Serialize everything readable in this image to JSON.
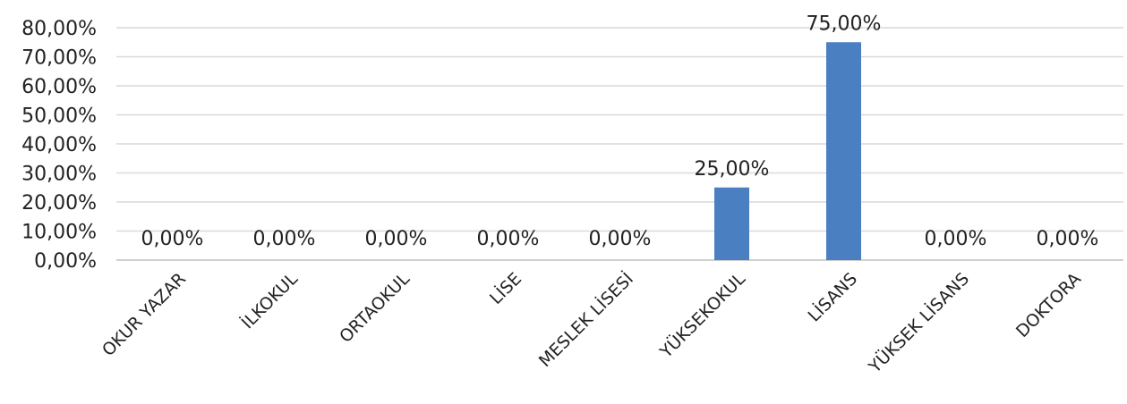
{
  "chart_data": {
    "type": "bar",
    "categories": [
      "OKUR YAZAR",
      "İLKOKUL",
      "ORTAOKUL",
      "LİSE",
      "MESLEK LİSESİ",
      "YÜKSEKOKUL",
      "LİSANS",
      "YÜKSEK LİSANS",
      "DOKTORA"
    ],
    "values": [
      0,
      0,
      0,
      0,
      0,
      25,
      75,
      0,
      0
    ],
    "data_labels": [
      "0,00%",
      "0,00%",
      "0,00%",
      "0,00%",
      "0,00%",
      "25,00%",
      "75,00%",
      "0,00%",
      "0,00%"
    ],
    "y_ticks": [
      "0,00%",
      "10,00%",
      "20,00%",
      "30,00%",
      "40,00%",
      "50,00%",
      "60,00%",
      "70,00%",
      "80,00%"
    ],
    "ylim": [
      0,
      80
    ],
    "grid": true,
    "legend": "none",
    "bar_color": "#4a7fc1"
  }
}
